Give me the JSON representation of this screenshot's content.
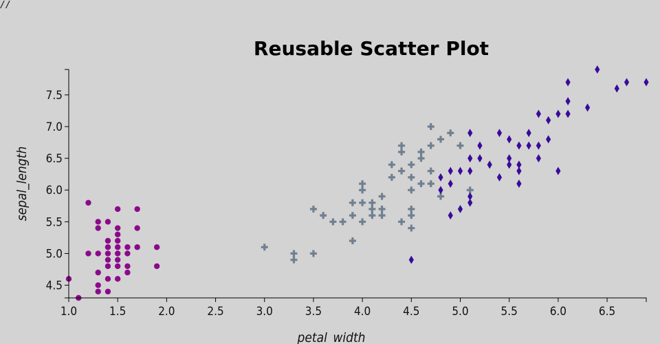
{
  "corner_mark": "//",
  "chart_data": {
    "type": "scatter",
    "title": "Reusable Scatter Plot",
    "xlabel": "petal_width",
    "ylabel": "sepal_length",
    "xlim": [
      1.0,
      6.9
    ],
    "ylim": [
      4.3,
      7.9
    ],
    "grid": false,
    "x_ticks": [
      1.0,
      1.5,
      2.0,
      2.5,
      3.0,
      3.5,
      4.0,
      4.5,
      5.0,
      5.5,
      6.0,
      6.5
    ],
    "x_tick_labels": [
      "1.0",
      "1.5",
      "2.0",
      "2.5",
      "3.0",
      "3.5",
      "4.0",
      "4.5",
      "5.0",
      "5.5",
      "6.0",
      "6.5"
    ],
    "y_ticks": [
      4.5,
      5.0,
      5.5,
      6.0,
      6.5,
      7.0,
      7.5
    ],
    "y_tick_labels": [
      "4.5",
      "5.0",
      "5.5",
      "6.0",
      "6.5",
      "7.0",
      "7.5"
    ],
    "series": [
      {
        "symbol": "circle",
        "color": "#8b0a8b",
        "points": [
          [
            1.0,
            4.6
          ],
          [
            1.1,
            4.3
          ],
          [
            1.2,
            5.8
          ],
          [
            1.2,
            5.0
          ],
          [
            1.3,
            5.5
          ],
          [
            1.3,
            5.4
          ],
          [
            1.3,
            5.0
          ],
          [
            1.3,
            4.7
          ],
          [
            1.3,
            4.5
          ],
          [
            1.3,
            4.4
          ],
          [
            1.4,
            5.5
          ],
          [
            1.4,
            5.2
          ],
          [
            1.4,
            5.1
          ],
          [
            1.4,
            5.0
          ],
          [
            1.4,
            4.9
          ],
          [
            1.4,
            4.8
          ],
          [
            1.4,
            4.6
          ],
          [
            1.4,
            4.4
          ],
          [
            1.5,
            5.7
          ],
          [
            1.5,
            5.4
          ],
          [
            1.5,
            5.3
          ],
          [
            1.5,
            5.2
          ],
          [
            1.5,
            5.1
          ],
          [
            1.5,
            5.0
          ],
          [
            1.5,
            4.9
          ],
          [
            1.5,
            4.8
          ],
          [
            1.5,
            4.6
          ],
          [
            1.6,
            5.1
          ],
          [
            1.6,
            5.0
          ],
          [
            1.6,
            4.8
          ],
          [
            1.6,
            4.7
          ],
          [
            1.7,
            5.7
          ],
          [
            1.7,
            5.4
          ],
          [
            1.7,
            5.1
          ],
          [
            1.9,
            5.1
          ],
          [
            1.9,
            4.8
          ]
        ]
      },
      {
        "symbol": "cross",
        "color": "#708090",
        "points": [
          [
            3.0,
            5.1
          ],
          [
            3.3,
            5.0
          ],
          [
            3.3,
            4.9
          ],
          [
            3.5,
            5.7
          ],
          [
            3.5,
            5.0
          ],
          [
            3.6,
            5.6
          ],
          [
            3.7,
            5.5
          ],
          [
            3.8,
            5.5
          ],
          [
            3.9,
            5.8
          ],
          [
            3.9,
            5.6
          ],
          [
            3.9,
            5.2
          ],
          [
            4.0,
            6.1
          ],
          [
            4.0,
            6.0
          ],
          [
            4.0,
            5.8
          ],
          [
            4.0,
            5.5
          ],
          [
            4.1,
            5.8
          ],
          [
            4.1,
            5.7
          ],
          [
            4.1,
            5.6
          ],
          [
            4.2,
            5.9
          ],
          [
            4.2,
            5.7
          ],
          [
            4.2,
            5.6
          ],
          [
            4.3,
            6.4
          ],
          [
            4.3,
            6.2
          ],
          [
            4.4,
            6.7
          ],
          [
            4.4,
            6.6
          ],
          [
            4.4,
            6.3
          ],
          [
            4.4,
            5.5
          ],
          [
            4.5,
            6.4
          ],
          [
            4.5,
            6.2
          ],
          [
            4.5,
            6.0
          ],
          [
            4.5,
            5.7
          ],
          [
            4.5,
            5.6
          ],
          [
            4.5,
            5.4
          ],
          [
            4.6,
            6.6
          ],
          [
            4.6,
            6.5
          ],
          [
            4.6,
            6.1
          ],
          [
            4.7,
            7.0
          ],
          [
            4.7,
            6.7
          ],
          [
            4.7,
            6.3
          ],
          [
            4.7,
            6.1
          ],
          [
            4.8,
            6.8
          ],
          [
            4.8,
            5.9
          ],
          [
            4.9,
            6.9
          ],
          [
            5.0,
            6.7
          ],
          [
            5.1,
            6.0
          ]
        ]
      },
      {
        "symbol": "diamond",
        "color": "#3a0a9a",
        "points": [
          [
            4.5,
            4.9
          ],
          [
            4.8,
            6.2
          ],
          [
            4.8,
            6.0
          ],
          [
            4.9,
            6.3
          ],
          [
            4.9,
            6.1
          ],
          [
            4.9,
            5.6
          ],
          [
            5.0,
            6.3
          ],
          [
            5.0,
            5.7
          ],
          [
            5.1,
            6.9
          ],
          [
            5.1,
            6.5
          ],
          [
            5.1,
            6.3
          ],
          [
            5.1,
            5.9
          ],
          [
            5.1,
            5.8
          ],
          [
            5.2,
            6.7
          ],
          [
            5.2,
            6.5
          ],
          [
            5.3,
            6.4
          ],
          [
            5.4,
            6.9
          ],
          [
            5.4,
            6.2
          ],
          [
            5.5,
            6.8
          ],
          [
            5.5,
            6.5
          ],
          [
            5.5,
            6.4
          ],
          [
            5.6,
            6.7
          ],
          [
            5.6,
            6.4
          ],
          [
            5.6,
            6.3
          ],
          [
            5.6,
            6.1
          ],
          [
            5.7,
            6.9
          ],
          [
            5.7,
            6.7
          ],
          [
            5.8,
            7.2
          ],
          [
            5.8,
            6.7
          ],
          [
            5.8,
            6.5
          ],
          [
            5.9,
            7.1
          ],
          [
            5.9,
            6.8
          ],
          [
            6.0,
            7.2
          ],
          [
            6.0,
            6.3
          ],
          [
            6.1,
            7.7
          ],
          [
            6.1,
            7.4
          ],
          [
            6.1,
            7.2
          ],
          [
            6.3,
            7.3
          ],
          [
            6.4,
            7.9
          ],
          [
            6.6,
            7.6
          ],
          [
            6.7,
            7.7
          ],
          [
            6.9,
            7.7
          ]
        ]
      }
    ]
  }
}
